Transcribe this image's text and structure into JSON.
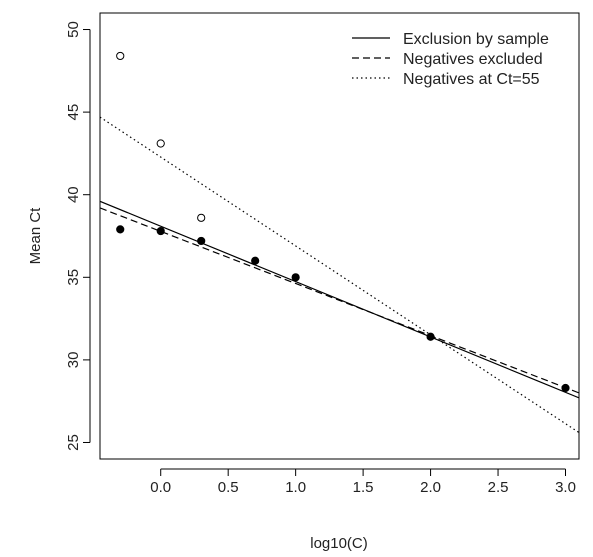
{
  "chart_data": {
    "type": "scatter",
    "title": "",
    "xlabel": "log10(C)",
    "ylabel": "Mean Ct",
    "xlim": [
      -0.45,
      3.1
    ],
    "ylim": [
      24,
      51
    ],
    "xticks": [
      0.0,
      0.5,
      1.0,
      1.5,
      2.0,
      2.5,
      3.0
    ],
    "xtick_labels": [
      "0.0",
      "0.5",
      "1.0",
      "1.5",
      "2.0",
      "2.5",
      "3.0"
    ],
    "yticks": [
      25,
      30,
      35,
      40,
      45,
      50
    ],
    "ytick_labels": [
      "25",
      "30",
      "35",
      "40",
      "45",
      "50"
    ],
    "grid": false,
    "legend_position": "top-right",
    "points": [
      {
        "style": "open",
        "points": [
          [
            -0.3,
            48.4
          ],
          [
            0.0,
            43.1
          ],
          [
            0.3,
            38.6
          ]
        ]
      },
      {
        "style": "filled",
        "points": [
          [
            -0.3,
            37.9
          ],
          [
            0.0,
            37.8
          ],
          [
            0.3,
            37.2
          ],
          [
            0.7,
            36.0
          ],
          [
            1.0,
            35.0
          ],
          [
            2.0,
            31.4
          ],
          [
            3.0,
            28.3
          ]
        ]
      }
    ],
    "lines": [
      {
        "name": "Exclusion by sample",
        "dash": "solid",
        "x": [
          -0.45,
          3.1
        ],
        "y": [
          39.6,
          27.7
        ]
      },
      {
        "name": "Negatives excluded",
        "dash": "dashed",
        "x": [
          -0.45,
          3.1
        ],
        "y": [
          39.2,
          28.0
        ]
      },
      {
        "name": "Negatives at Ct=55",
        "dash": "dotted",
        "x": [
          -0.45,
          3.1
        ],
        "y": [
          44.7,
          25.6
        ]
      }
    ]
  }
}
